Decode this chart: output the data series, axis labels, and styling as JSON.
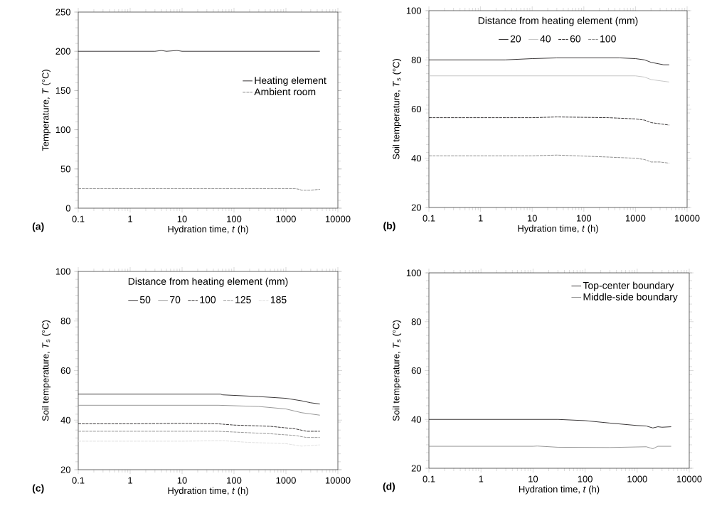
{
  "chart_data": [
    {
      "type": "line",
      "xlabel": "Hydration time, *t* (h)",
      "ylabel": "Temperature, *T* (°C)",
      "log": "x",
      "xlim": [
        0.1,
        10000
      ],
      "ylim": [
        0,
        250
      ],
      "xticks": [
        0.1,
        1,
        10,
        100,
        1000,
        10000
      ],
      "yticks": [
        0,
        50,
        100,
        150,
        200,
        250
      ],
      "legend": "right",
      "annotations": [
        "(a)"
      ],
      "series": [
        {
          "name": "Heating element",
          "color": "#231f20",
          "line_style": "solid",
          "x": [
            0.1,
            1,
            3,
            4,
            5,
            8,
            10,
            30,
            100,
            300,
            1000,
            2000,
            4500
          ],
          "values": [
            200,
            200,
            200,
            201,
            200,
            201,
            200,
            200,
            200,
            200,
            200,
            200,
            200
          ]
        },
        {
          "name": "Ambient room",
          "color": "#808080",
          "line_style": "dashed",
          "x": [
            0.1,
            1,
            10,
            100,
            1000,
            1500,
            1800,
            2000,
            3000,
            4500
          ],
          "values": [
            25,
            25,
            25,
            25,
            25,
            25,
            24,
            23,
            23,
            24
          ]
        }
      ]
    },
    {
      "type": "line",
      "xlabel": "Hydration time, *t* (h)",
      "ylabel": "Soil temperature, *T*$_{s}$ (°C)",
      "log": "x",
      "xlim": [
        0.1,
        10000
      ],
      "ylim": [
        20,
        100
      ],
      "xticks": [
        0.1,
        1,
        10,
        100,
        1000,
        10000
      ],
      "yticks": [
        20,
        40,
        60,
        80,
        100
      ],
      "legend": "top",
      "legend_title": "Distance from heating element (mm)",
      "annotations": [
        "(b)"
      ],
      "series": [
        {
          "name": "20",
          "color": "#231f20",
          "line_style": "solid",
          "x": [
            0.1,
            1,
            3,
            10,
            30,
            100,
            500,
            1000,
            1500,
            2000,
            3500,
            4500
          ],
          "values": [
            80,
            80,
            80,
            80.5,
            80.8,
            80.8,
            80.8,
            80.5,
            80,
            79,
            78,
            78
          ]
        },
        {
          "name": "40",
          "color": "#c0c0c0",
          "line_style": "solid",
          "x": [
            0.1,
            1,
            10,
            100,
            500,
            1000,
            1500,
            2000,
            3000,
            4500
          ],
          "values": [
            73.5,
            73.5,
            73.5,
            73.5,
            73.5,
            73.5,
            73,
            72,
            71.5,
            71
          ]
        },
        {
          "name": "60",
          "color": "#231f20",
          "line_style": "dashed",
          "x": [
            0.1,
            1,
            10,
            30,
            300,
            1000,
            1500,
            2000,
            3000,
            4500
          ],
          "values": [
            56.5,
            56.5,
            56.5,
            56.8,
            56.5,
            56,
            55.5,
            54.5,
            54,
            53.5
          ]
        },
        {
          "name": "100",
          "color": "#808080",
          "line_style": "dashed",
          "x": [
            0.1,
            1,
            10,
            30,
            300,
            1000,
            1500,
            2000,
            3000,
            4500
          ],
          "values": [
            41,
            41,
            41,
            41.3,
            40.5,
            40,
            39.5,
            38.5,
            38.5,
            38
          ]
        }
      ]
    },
    {
      "type": "line",
      "xlabel": "Hydration time, *t* (h)",
      "ylabel": "Soil temperature, *T*$_{s}$ (°C)",
      "log": "x",
      "xlim": [
        0.1,
        10000
      ],
      "ylim": [
        20,
        100
      ],
      "xticks": [
        0.1,
        1,
        10,
        100,
        1000,
        10000
      ],
      "yticks": [
        20,
        40,
        60,
        80,
        100
      ],
      "legend": "top",
      "legend_title": "Distance from heating element (mm)",
      "annotations": [
        "(c)"
      ],
      "series": [
        {
          "name": "50",
          "color": "#231f20",
          "line_style": "solid",
          "x": [
            0.1,
            1,
            10,
            55,
            60,
            300,
            1000,
            2000,
            3000,
            4500
          ],
          "values": [
            50.5,
            50.5,
            50.5,
            50.5,
            50.2,
            49.5,
            48.8,
            47.8,
            47,
            46.5
          ]
        },
        {
          "name": "70",
          "color": "#8c8c8c",
          "line_style": "solid",
          "x": [
            0.1,
            1,
            10,
            50,
            300,
            1000,
            2000,
            3000,
            4500
          ],
          "values": [
            46,
            46,
            46,
            46,
            45.5,
            44.5,
            43,
            42.5,
            42
          ]
        },
        {
          "name": "100",
          "color": "#231f20",
          "line_style": "dashed",
          "x": [
            0.1,
            1,
            10,
            50,
            100,
            500,
            1500,
            2500,
            4500
          ],
          "values": [
            38.5,
            38.5,
            38.7,
            38.5,
            38,
            37.5,
            36.5,
            35.5,
            35.5
          ]
        },
        {
          "name": "125",
          "color": "#8c8c8c",
          "line_style": "dashed",
          "x": [
            0.1,
            1,
            10,
            50,
            500,
            1500,
            2500,
            4500
          ],
          "values": [
            35.5,
            35.5,
            35.5,
            35.5,
            34.5,
            33.8,
            33,
            33
          ]
        },
        {
          "name": "185",
          "color": "#dcdcdc",
          "line_style": "dashed",
          "x": [
            0.1,
            1,
            10,
            60,
            200,
            1000,
            2000,
            4500
          ],
          "values": [
            31.5,
            31.5,
            31.5,
            31.7,
            31,
            30.5,
            29.5,
            30
          ]
        }
      ]
    },
    {
      "type": "line",
      "xlabel": "Hydration time, *t* (h)",
      "ylabel": "Soil temperature, *T*$_{s}$ (°C)",
      "log": "x",
      "xlim": [
        0.1,
        10000
      ],
      "ylim": [
        20,
        100
      ],
      "xticks": [
        0.1,
        1,
        10,
        100,
        1000,
        10000
      ],
      "yticks": [
        20,
        40,
        60,
        80,
        100
      ],
      "legend": "top right",
      "annotations": [
        "(d)"
      ],
      "series": [
        {
          "name": "Top-center boundary",
          "color": "#231f20",
          "line_style": "solid",
          "x": [
            0.1,
            1,
            10,
            30,
            100,
            300,
            1000,
            1500,
            2000,
            2500,
            3000,
            4500
          ],
          "values": [
            40,
            40,
            40,
            40,
            39.5,
            38.5,
            37.5,
            37.3,
            36.5,
            37,
            36.8,
            37
          ]
        },
        {
          "name": "Middle-side boundary",
          "color": "#8c8c8c",
          "line_style": "solid",
          "x": [
            0.1,
            1,
            10,
            12,
            30,
            300,
            1500,
            2000,
            2500,
            4500
          ],
          "values": [
            29,
            29,
            29,
            29.1,
            28.6,
            28.5,
            28.8,
            28,
            29,
            29
          ]
        }
      ]
    }
  ]
}
